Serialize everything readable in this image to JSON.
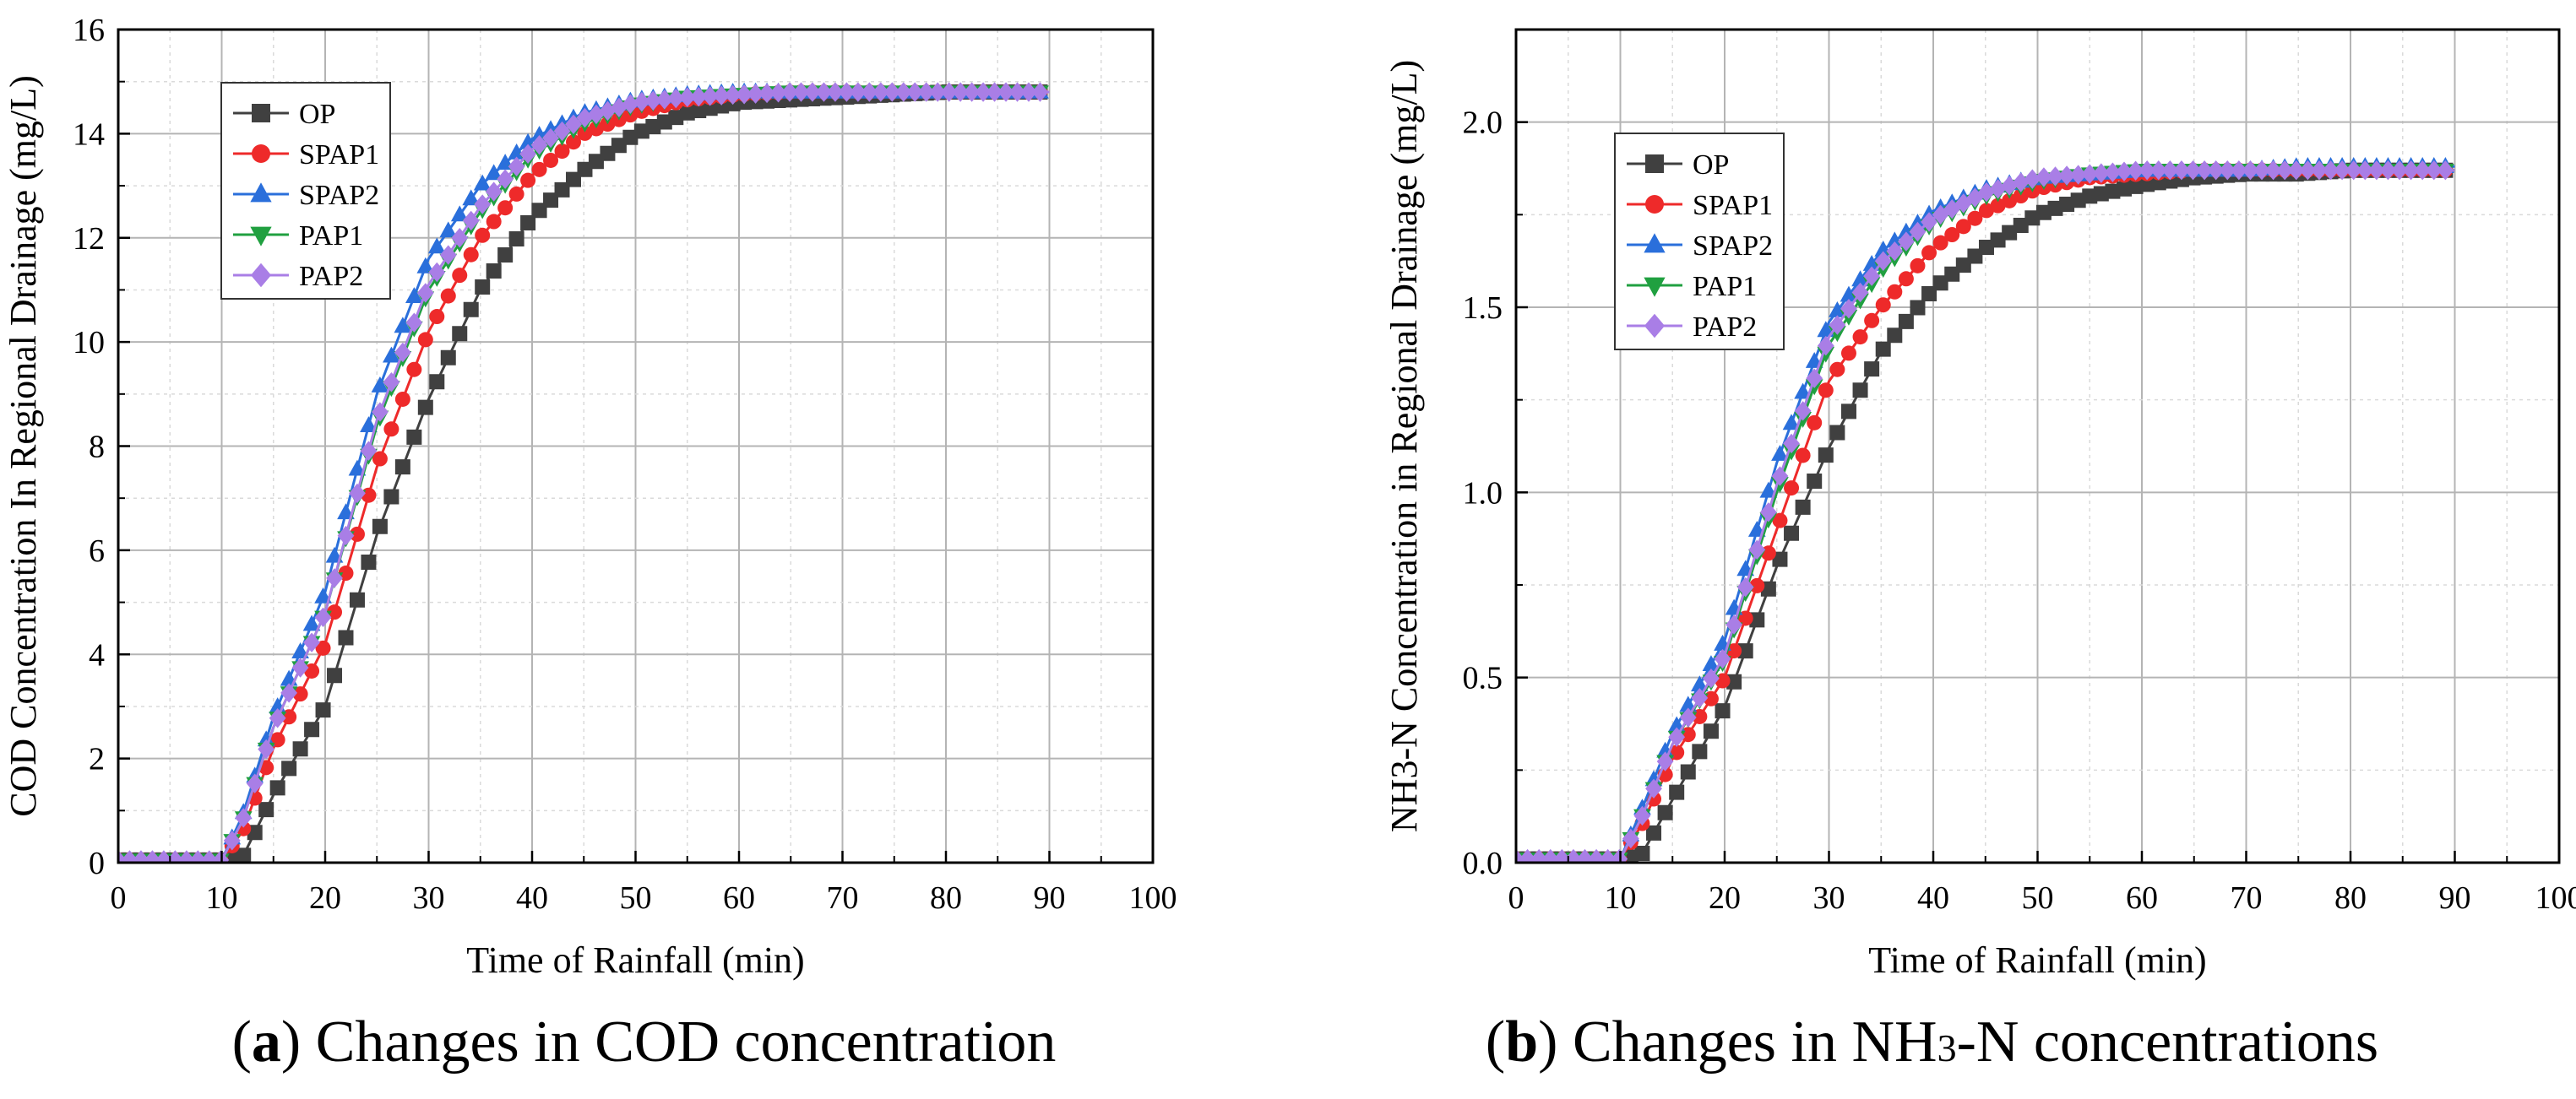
{
  "figure": {
    "captions": [
      {
        "letter": "a",
        "text": "Changes in COD concentration"
      },
      {
        "letter": "b",
        "text_before": "Changes in NH",
        "text_sub": "3",
        "text_after": "-N concentrations"
      }
    ]
  },
  "chart_data": [
    {
      "type": "line",
      "title": "",
      "xlabel": "Time of Rainfall (min)",
      "ylabel": "COD Concentration In Regional Drainage (mg/L)",
      "xlim": [
        0,
        100
      ],
      "ylim": [
        0,
        16
      ],
      "xticks": [
        0,
        10,
        20,
        30,
        40,
        50,
        60,
        70,
        80,
        90,
        100
      ],
      "yticks": [
        0,
        2,
        4,
        6,
        8,
        10,
        12,
        14,
        16
      ],
      "ytick_labels": [
        "0",
        "2",
        "4",
        "6",
        "8",
        "10",
        "12",
        "14",
        "16"
      ],
      "grid": true,
      "legend_position": "top-left",
      "x": [
        0,
        5,
        10,
        12,
        15,
        20,
        25,
        30,
        35,
        40,
        45,
        50,
        55,
        60,
        65,
        70,
        75,
        80,
        85,
        90
      ],
      "series": [
        {
          "name": "OP",
          "color": "#404040",
          "marker": "square",
          "values": [
            0.05,
            0.05,
            0.05,
            0.1,
            1.3,
            3.0,
            6.3,
            8.9,
            11.0,
            12.4,
            13.3,
            14.0,
            14.4,
            14.6,
            14.65,
            14.7,
            14.75,
            14.8,
            14.8,
            14.8
          ]
        },
        {
          "name": "SPAP1",
          "color": "#ee2a2a",
          "marker": "circle",
          "values": [
            0.05,
            0.05,
            0.05,
            0.6,
            2.2,
            4.2,
            7.6,
            10.2,
            12.0,
            13.2,
            14.0,
            14.4,
            14.65,
            14.75,
            14.8,
            14.8,
            14.8,
            14.8,
            14.8,
            14.8
          ]
        },
        {
          "name": "SPAP2",
          "color": "#2a6fdb",
          "marker": "triangle-up",
          "values": [
            0.05,
            0.05,
            0.05,
            0.9,
            2.8,
            5.2,
            9.0,
            11.6,
            13.0,
            13.9,
            14.4,
            14.65,
            14.75,
            14.8,
            14.8,
            14.8,
            14.8,
            14.8,
            14.8,
            14.8
          ]
        },
        {
          "name": "PAP1",
          "color": "#20a040",
          "marker": "triangle-down",
          "values": [
            0.05,
            0.05,
            0.05,
            0.8,
            2.6,
            4.8,
            8.4,
            11.0,
            12.5,
            13.6,
            14.2,
            14.55,
            14.7,
            14.75,
            14.8,
            14.8,
            14.8,
            14.8,
            14.8,
            14.8
          ]
        },
        {
          "name": "PAP2",
          "color": "#a97ee6",
          "marker": "diamond",
          "values": [
            0.05,
            0.05,
            0.05,
            0.8,
            2.6,
            4.8,
            8.5,
            11.1,
            12.6,
            13.7,
            14.3,
            14.6,
            14.7,
            14.75,
            14.8,
            14.8,
            14.8,
            14.8,
            14.8,
            14.8
          ]
        }
      ]
    },
    {
      "type": "line",
      "title": "",
      "xlabel": "Time of Rainfall (min)",
      "ylabel": "NH3-N Concentration in Regional Drainage (mg/L)",
      "xlim": [
        0,
        100
      ],
      "ylim": [
        0,
        2.25
      ],
      "xticks": [
        0,
        10,
        20,
        30,
        40,
        50,
        60,
        70,
        80,
        90,
        100
      ],
      "yticks": [
        0,
        0.5,
        1.0,
        1.5,
        2.0
      ],
      "ytick_labels": [
        "0.0",
        "0.5",
        "1.0",
        "1.5",
        "2.0"
      ],
      "grid": true,
      "legend_position": "top-left",
      "x": [
        0,
        5,
        10,
        12,
        15,
        20,
        25,
        30,
        35,
        40,
        45,
        50,
        55,
        60,
        65,
        70,
        75,
        80,
        85,
        90
      ],
      "series": [
        {
          "name": "OP",
          "color": "#404040",
          "marker": "square",
          "values": [
            0.01,
            0.01,
            0.01,
            0.02,
            0.17,
            0.42,
            0.8,
            1.12,
            1.38,
            1.55,
            1.66,
            1.75,
            1.8,
            1.83,
            1.85,
            1.86,
            1.86,
            1.87,
            1.87,
            1.87
          ]
        },
        {
          "name": "SPAP1",
          "color": "#ee2a2a",
          "marker": "circle",
          "values": [
            0.01,
            0.01,
            0.01,
            0.1,
            0.28,
            0.5,
            0.9,
            1.3,
            1.5,
            1.66,
            1.76,
            1.82,
            1.85,
            1.86,
            1.87,
            1.87,
            1.87,
            1.87,
            1.87,
            1.87
          ]
        },
        {
          "name": "SPAP2",
          "color": "#2a6fdb",
          "marker": "triangle-up",
          "values": [
            0.01,
            0.01,
            0.01,
            0.14,
            0.35,
            0.6,
            1.08,
            1.46,
            1.65,
            1.76,
            1.82,
            1.85,
            1.86,
            1.87,
            1.87,
            1.87,
            1.88,
            1.88,
            1.88,
            1.88
          ]
        },
        {
          "name": "PAP1",
          "color": "#20a040",
          "marker": "triangle-down",
          "values": [
            0.01,
            0.01,
            0.01,
            0.12,
            0.32,
            0.55,
            1.0,
            1.4,
            1.6,
            1.73,
            1.8,
            1.84,
            1.86,
            1.87,
            1.87,
            1.87,
            1.87,
            1.87,
            1.87,
            1.87
          ]
        },
        {
          "name": "PAP2",
          "color": "#a97ee6",
          "marker": "diamond",
          "values": [
            0.01,
            0.01,
            0.01,
            0.12,
            0.32,
            0.56,
            1.02,
            1.42,
            1.62,
            1.74,
            1.81,
            1.85,
            1.86,
            1.87,
            1.87,
            1.87,
            1.87,
            1.87,
            1.87,
            1.87
          ]
        }
      ]
    }
  ]
}
